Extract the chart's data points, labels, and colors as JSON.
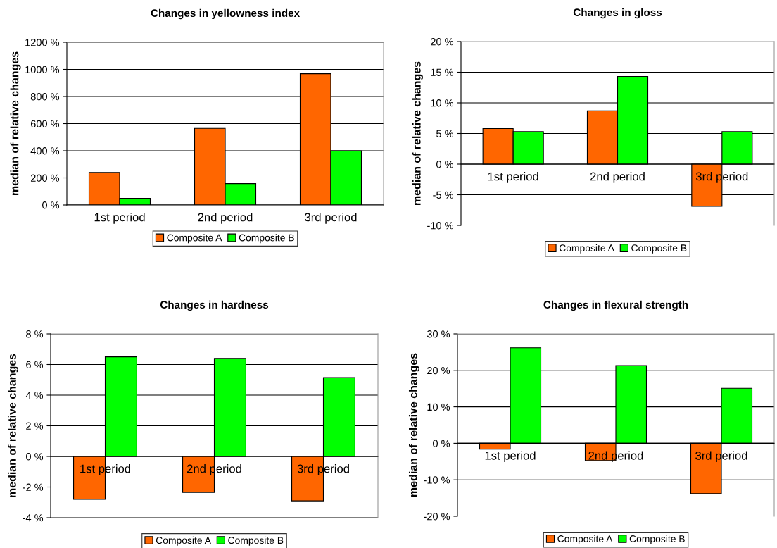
{
  "chart_data": [
    {
      "type": "bar",
      "title": "Changes in yellowness index",
      "ylabel": "median of relative changes",
      "categories": [
        "1st period",
        "2nd period",
        "3rd period"
      ],
      "series": [
        {
          "name": "Composite A",
          "color": "#ff6600",
          "values": [
            240,
            565,
            968
          ]
        },
        {
          "name": "Composite B",
          "color": "#00ff00",
          "values": [
            49,
            158,
            400
          ]
        }
      ],
      "ylim": [
        0,
        1200
      ],
      "yticks": [
        {
          "value": 0,
          "label": "0 %"
        },
        {
          "value": 200,
          "label": "200 %"
        },
        {
          "value": 400,
          "label": "400 %"
        },
        {
          "value": 600,
          "label": "600 %"
        },
        {
          "value": 800,
          "label": "800 %"
        },
        {
          "value": 1000,
          "label": "1000 %"
        },
        {
          "value": 1200,
          "label": "1200 %"
        }
      ],
      "grid": "y",
      "legend": "bottom"
    },
    {
      "type": "bar",
      "title": "Changes in gloss",
      "ylabel": "median of relative changes",
      "categories": [
        "1st period",
        "2nd period",
        "3rd period"
      ],
      "series": [
        {
          "name": "Composite A",
          "color": "#ff6600",
          "values": [
            5.8,
            8.7,
            -6.9
          ]
        },
        {
          "name": "Composite B",
          "color": "#00ff00",
          "values": [
            5.3,
            14.3,
            5.3
          ]
        }
      ],
      "ylim": [
        -10,
        20
      ],
      "yticks": [
        {
          "value": -10,
          "label": "-10 %"
        },
        {
          "value": -5,
          "label": "-5 %"
        },
        {
          "value": 0,
          "label": "0 %"
        },
        {
          "value": 5,
          "label": "5 %"
        },
        {
          "value": 10,
          "label": "10 %"
        },
        {
          "value": 15,
          "label": "15 %"
        },
        {
          "value": 20,
          "label": "20 %"
        }
      ],
      "grid": "y",
      "legend": "bottom"
    },
    {
      "type": "bar",
      "title": "Changes in hardness",
      "ylabel": "median of relative changes",
      "categories": [
        "1st period",
        "2nd period",
        "3rd period"
      ],
      "series": [
        {
          "name": "Composite A",
          "color": "#ff6600",
          "values": [
            -2.8,
            -2.35,
            -2.9
          ]
        },
        {
          "name": "Composite B",
          "color": "#00ff00",
          "values": [
            6.5,
            6.4,
            5.15
          ]
        }
      ],
      "ylim": [
        -4,
        8
      ],
      "yticks": [
        {
          "value": -4,
          "label": "-4 %"
        },
        {
          "value": -2,
          "label": "-2 %"
        },
        {
          "value": 0,
          "label": "0 %"
        },
        {
          "value": 2,
          "label": "2 %"
        },
        {
          "value": 4,
          "label": "4 %"
        },
        {
          "value": 6,
          "label": "6 %"
        },
        {
          "value": 8,
          "label": "8 %"
        }
      ],
      "grid": "y",
      "legend": "bottom"
    },
    {
      "type": "bar",
      "title": "Changes in flexural strength",
      "ylabel": "median of relative changes",
      "categories": [
        "1st period",
        "2nd period",
        "3rd period"
      ],
      "series": [
        {
          "name": "Composite A",
          "color": "#ff6600",
          "values": [
            -1.6,
            -4.7,
            -13.8
          ]
        },
        {
          "name": "Composite B",
          "color": "#00ff00",
          "values": [
            26.2,
            21.3,
            15.1
          ]
        }
      ],
      "ylim": [
        -20,
        30
      ],
      "yticks": [
        {
          "value": -20,
          "label": "-20 %"
        },
        {
          "value": -10,
          "label": "-10 %"
        },
        {
          "value": 0,
          "label": "0 %"
        },
        {
          "value": 10,
          "label": "10 %"
        },
        {
          "value": 20,
          "label": "20 %"
        },
        {
          "value": 30,
          "label": "30 %"
        }
      ],
      "grid": "y",
      "legend": "bottom"
    }
  ]
}
